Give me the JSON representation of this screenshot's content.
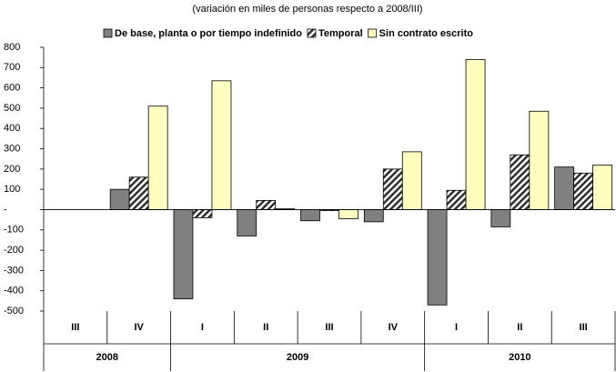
{
  "chart_data": {
    "type": "bar",
    "subtitle": "(variación en miles de personas respecto a 2008/III)",
    "categories": [
      "III",
      "IV",
      "I",
      "II",
      "III",
      "IV",
      "I",
      "II",
      "III"
    ],
    "groups": [
      {
        "label": "2008",
        "count": 2
      },
      {
        "label": "2009",
        "count": 4
      },
      {
        "label": "2010",
        "count": 3
      }
    ],
    "series": [
      {
        "name": "De base, planta o por tiempo indefinido",
        "color": "#808080",
        "values": [
          0,
          100,
          -440,
          -130,
          -55,
          -60,
          -470,
          -85,
          210
        ]
      },
      {
        "name": "Temporal",
        "color": "#303030",
        "pattern": "hatch",
        "values": [
          0,
          160,
          -40,
          45,
          -5,
          200,
          95,
          270,
          180
        ]
      },
      {
        "name": "Sin contrato escrito",
        "color": "#ffffc0",
        "values": [
          0,
          510,
          635,
          5,
          -45,
          285,
          740,
          485,
          220
        ]
      }
    ],
    "ylim": [
      -500,
      800
    ],
    "yticks": [
      -500,
      -400,
      -300,
      -200,
      -100,
      {
        "value": 0,
        "label": "-"
      },
      100,
      200,
      300,
      400,
      500,
      600,
      700,
      800
    ],
    "legend": "top"
  }
}
